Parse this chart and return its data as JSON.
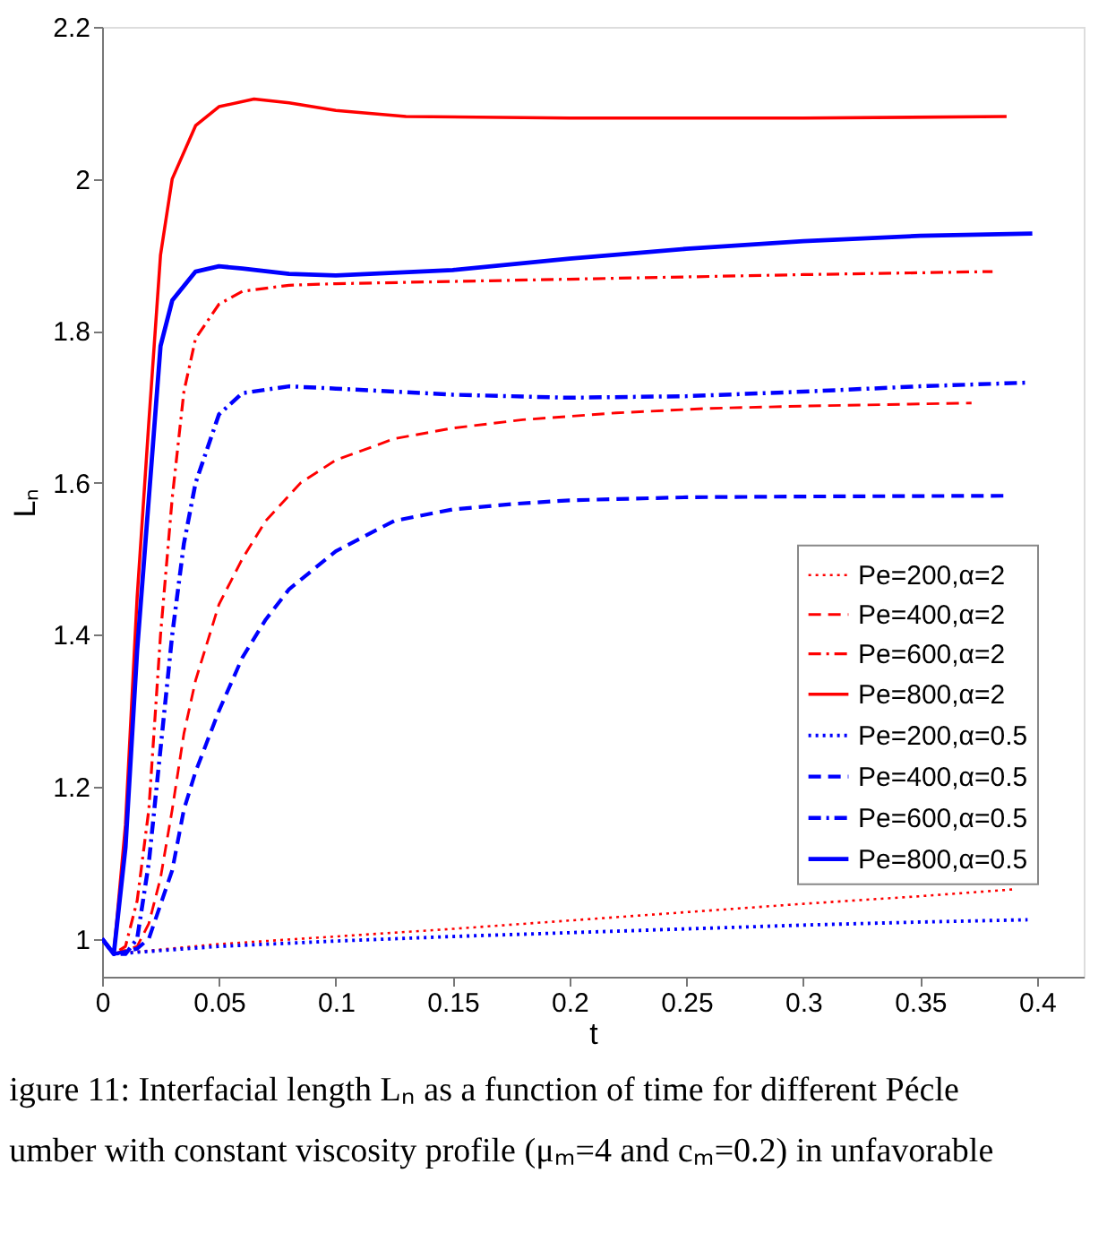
{
  "chart_data": {
    "type": "line",
    "xlabel": "t",
    "ylabel": "Lₙ",
    "xlim": [
      0,
      0.42
    ],
    "xticks": [
      0,
      0.05,
      0.1,
      0.15,
      0.2,
      0.25,
      0.3,
      0.35,
      0.4
    ],
    "ylim": [
      0.95,
      2.2
    ],
    "yticks": [
      1,
      1.2,
      1.4,
      1.6,
      1.8,
      2,
      2.2
    ],
    "grid": false,
    "legend": "right",
    "marker": "none",
    "annotations": [
      "igure 11: Interfacial length Lₙ as a function of time for different Pécle",
      "umber with constant viscosity profile (μₘ=4 and cₘ=0.2) in unfavorable"
    ],
    "series": [
      {
        "name": "Pe=200,α=2",
        "color": "#ff0000",
        "line_style": "dotted",
        "x": [
          0,
          0.005,
          0.05,
          0.1,
          0.15,
          0.2,
          0.25,
          0.3,
          0.35,
          0.39
        ],
        "values": [
          1.0,
          0.98,
          0.993,
          1.003,
          1.013,
          1.024,
          1.035,
          1.046,
          1.056,
          1.065
        ]
      },
      {
        "name": "Pe=400,α=2",
        "color": "#ff0000",
        "line_style": "dashed",
        "x": [
          0,
          0.005,
          0.01,
          0.015,
          0.02,
          0.025,
          0.03,
          0.035,
          0.04,
          0.05,
          0.06,
          0.07,
          0.085,
          0.1,
          0.125,
          0.15,
          0.18,
          0.22,
          0.26,
          0.3,
          0.372
        ],
        "values": [
          1.0,
          0.98,
          0.985,
          0.99,
          1.02,
          1.08,
          1.17,
          1.27,
          1.34,
          1.44,
          1.5,
          1.55,
          1.6,
          1.63,
          1.658,
          1.672,
          1.683,
          1.692,
          1.698,
          1.701,
          1.705
        ]
      },
      {
        "name": "Pe=600,α=2",
        "color": "#ff0000",
        "line_style": "dashdot",
        "x": [
          0,
          0.005,
          0.01,
          0.015,
          0.02,
          0.025,
          0.03,
          0.035,
          0.04,
          0.05,
          0.06,
          0.08,
          0.1,
          0.2,
          0.3,
          0.381
        ],
        "values": [
          1.0,
          0.98,
          0.99,
          1.05,
          1.17,
          1.4,
          1.58,
          1.72,
          1.79,
          1.835,
          1.852,
          1.86,
          1.862,
          1.868,
          1.874,
          1.878
        ]
      },
      {
        "name": "Pe=800,α=2",
        "color": "#ff0000",
        "line_style": "solid",
        "x": [
          0,
          0.005,
          0.01,
          0.015,
          0.02,
          0.025,
          0.03,
          0.04,
          0.05,
          0.065,
          0.08,
          0.1,
          0.13,
          0.2,
          0.3,
          0.387
        ],
        "values": [
          1.0,
          0.98,
          1.15,
          1.45,
          1.68,
          1.9,
          2.0,
          2.07,
          2.095,
          2.105,
          2.1,
          2.09,
          2.082,
          2.08,
          2.08,
          2.082
        ]
      },
      {
        "name": "Pe=200,α=0.5",
        "color": "#0000ff",
        "line_style": "dotted",
        "x": [
          0,
          0.005,
          0.05,
          0.1,
          0.15,
          0.2,
          0.25,
          0.3,
          0.35,
          0.396
        ],
        "values": [
          1.0,
          0.98,
          0.99,
          0.997,
          1.003,
          1.008,
          1.013,
          1.018,
          1.022,
          1.025
        ]
      },
      {
        "name": "Pe=400,α=0.5",
        "color": "#0000ff",
        "line_style": "dashed",
        "x": [
          0,
          0.005,
          0.01,
          0.015,
          0.02,
          0.03,
          0.035,
          0.04,
          0.05,
          0.06,
          0.07,
          0.08,
          0.1,
          0.125,
          0.15,
          0.175,
          0.2,
          0.25,
          0.3,
          0.388
        ],
        "values": [
          1.0,
          0.98,
          0.983,
          0.987,
          1.0,
          1.09,
          1.17,
          1.22,
          1.3,
          1.37,
          1.42,
          1.46,
          1.51,
          1.55,
          1.565,
          1.572,
          1.577,
          1.581,
          1.582,
          1.583
        ]
      },
      {
        "name": "Pe=600,α=0.5",
        "color": "#0000ff",
        "line_style": "dashdot",
        "x": [
          0,
          0.005,
          0.01,
          0.015,
          0.02,
          0.025,
          0.03,
          0.035,
          0.04,
          0.05,
          0.06,
          0.08,
          0.1,
          0.15,
          0.2,
          0.25,
          0.3,
          0.35,
          0.397
        ],
        "values": [
          1.0,
          0.98,
          0.98,
          1.0,
          1.1,
          1.25,
          1.4,
          1.52,
          1.6,
          1.69,
          1.718,
          1.727,
          1.724,
          1.716,
          1.712,
          1.714,
          1.72,
          1.727,
          1.732
        ]
      },
      {
        "name": "Pe=800,α=0.5",
        "color": "#0000ff",
        "line_style": "solid",
        "x": [
          0,
          0.005,
          0.01,
          0.015,
          0.02,
          0.025,
          0.03,
          0.04,
          0.05,
          0.06,
          0.08,
          0.1,
          0.15,
          0.2,
          0.25,
          0.3,
          0.35,
          0.398
        ],
        "values": [
          1.0,
          0.98,
          1.12,
          1.38,
          1.58,
          1.78,
          1.84,
          1.878,
          1.885,
          1.882,
          1.875,
          1.873,
          1.88,
          1.895,
          1.908,
          1.918,
          1.925,
          1.928
        ]
      }
    ]
  }
}
